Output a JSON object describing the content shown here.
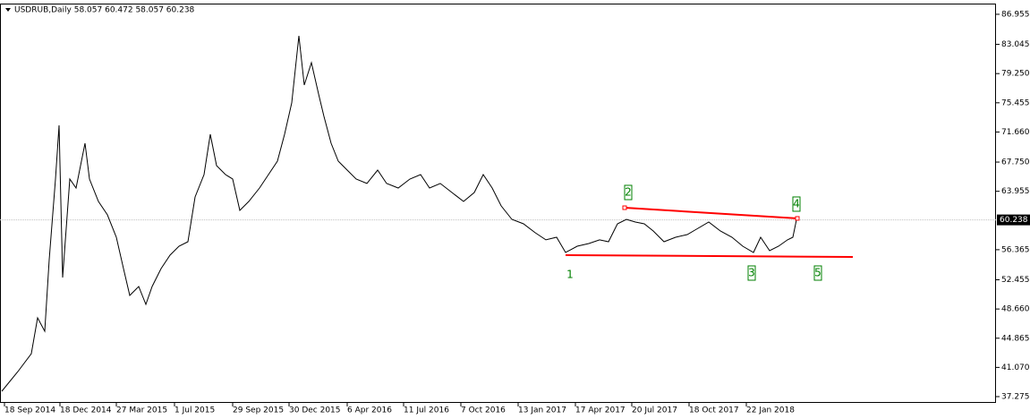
{
  "chart_data": {
    "type": "line",
    "title": "USDRUB,Daily  58.057 60.472 58.057 60.238",
    "x": [
      2,
      20,
      35,
      42,
      50,
      55,
      62,
      66,
      70,
      78,
      85,
      95,
      100,
      110,
      120,
      130,
      138,
      145,
      155,
      163,
      170,
      180,
      190,
      200,
      210,
      218,
      228,
      235,
      242,
      252,
      260,
      268,
      278,
      290,
      300,
      310,
      318,
      326,
      334,
      340,
      348,
      356,
      362,
      370,
      378,
      388,
      398,
      410,
      422,
      432,
      445,
      458,
      470,
      480,
      492,
      505,
      518,
      530,
      540,
      550,
      560,
      572,
      585,
      598,
      610,
      622,
      632,
      645,
      658,
      670,
      680,
      690,
      700,
      710,
      720,
      730,
      742,
      755,
      768,
      780,
      792,
      805,
      818,
      830,
      842,
      850,
      860,
      870,
      880,
      886,
      890
    ],
    "series": [
      {
        "name": "USDRUB",
        "color": "#000000",
        "values": [
          37.97,
          40.53,
          42.86,
          47.51,
          45.77,
          55.08,
          65.55,
          72.53,
          52.75,
          65.55,
          64.38,
          70.2,
          65.55,
          62.64,
          60.9,
          57.98,
          53.91,
          50.42,
          51.58,
          49.26,
          51.58,
          53.91,
          55.66,
          56.82,
          57.4,
          63.22,
          66.13,
          71.36,
          67.29,
          66.13,
          65.55,
          61.47,
          62.64,
          64.38,
          66.13,
          67.87,
          71.36,
          75.44,
          84.16,
          77.76,
          80.67,
          76.6,
          73.69,
          70.2,
          67.87,
          66.71,
          65.55,
          64.97,
          66.71,
          64.97,
          64.38,
          65.55,
          66.13,
          64.38,
          64.97,
          63.8,
          62.64,
          63.8,
          66.13,
          64.38,
          62.06,
          60.31,
          59.73,
          58.57,
          57.64,
          57.98,
          56.0,
          56.82,
          57.17,
          57.64,
          57.4,
          59.73,
          60.31,
          59.96,
          59.73,
          58.8,
          57.4,
          57.98,
          58.33,
          59.15,
          59.96,
          58.8,
          57.98,
          56.82,
          56.0,
          57.98,
          56.24,
          56.82,
          57.64,
          57.98,
          60.24
        ]
      }
    ],
    "xlim": [
      0,
      1113
    ],
    "ylim": [
      36.46,
      88.23
    ],
    "xticks": [
      {
        "value": 5,
        "label": "18 Sep 2014"
      },
      {
        "value": 67,
        "label": "18 Dec 2014"
      },
      {
        "value": 130,
        "label": "27 Mar 2015"
      },
      {
        "value": 195,
        "label": "1 Jul 2015"
      },
      {
        "value": 260,
        "label": "29 Sep 2015"
      },
      {
        "value": 323,
        "label": "30 Dec 2015"
      },
      {
        "value": 388,
        "label": "6 Apr 2016"
      },
      {
        "value": 451,
        "label": "11 Jul 2016"
      },
      {
        "value": 515,
        "label": "7 Oct 2016"
      },
      {
        "value": 579,
        "label": "13 Jan 2017"
      },
      {
        "value": 643,
        "label": "17 Apr 2017"
      },
      {
        "value": 706,
        "label": "20 Jul 2017"
      },
      {
        "value": 770,
        "label": "18 Oct 2017"
      },
      {
        "value": 834,
        "label": "22 Jan 2018"
      }
    ],
    "yticks": [
      86.955,
      83.045,
      {
        "value": 79.25,
        "label": "79.250"
      },
      75.455,
      {
        "value": 71.66,
        "label": "71.660"
      },
      {
        "value": 67.75,
        "label": "67.750"
      },
      63.955,
      56.365,
      52.455,
      {
        "value": 48.66,
        "label": "48.660"
      },
      44.865,
      {
        "value": 41.07,
        "label": "41.070"
      },
      37.275
    ],
    "last_price": 60.238,
    "trendlines": [
      {
        "x": [
          698,
          891
        ],
        "y": [
          61.82,
          60.43
        ],
        "color": "#ff0000"
      },
      {
        "x": [
          632,
          953
        ],
        "y": [
          55.66,
          55.42
        ],
        "color": "#ff0000"
      }
    ],
    "wave_labels": [
      {
        "text": "1",
        "x": 637,
        "y": 53.1,
        "boxed": false
      },
      {
        "text": "2",
        "x": 702,
        "y": 63.8,
        "boxed": true
      },
      {
        "text": "3",
        "x": 840,
        "y": 53.33,
        "boxed": true
      },
      {
        "text": "4",
        "x": 890,
        "y": 62.29,
        "boxed": true
      },
      {
        "text": "5",
        "x": 914,
        "y": 53.33,
        "boxed": true
      }
    ],
    "wave_color": "#008000"
  }
}
